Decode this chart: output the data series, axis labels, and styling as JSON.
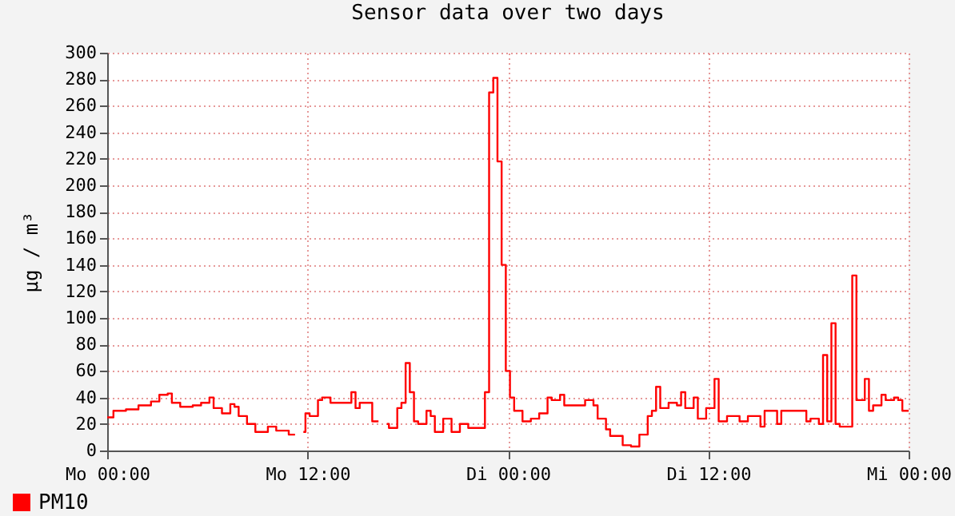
{
  "chart_data": {
    "type": "step",
    "title": "Sensor data over two days",
    "ylabel": "µg / m³",
    "categories": [
      "Mo 00:00",
      null,
      null,
      null,
      null,
      null,
      null,
      null,
      null,
      null,
      null,
      null,
      null,
      null,
      null,
      null,
      null,
      null,
      null,
      null,
      null,
      null,
      null,
      null,
      null,
      null,
      null,
      null,
      null,
      null,
      null,
      null,
      null,
      null,
      null,
      null,
      null,
      null,
      null,
      null,
      null,
      null,
      null,
      null,
      null,
      null,
      null,
      null,
      "Mo 12:00",
      null,
      null,
      null,
      null,
      null,
      null,
      null,
      null,
      null,
      null,
      null,
      null,
      null,
      null,
      null,
      null,
      null,
      null,
      null,
      null,
      null,
      null,
      null,
      null,
      null,
      null,
      null,
      null,
      null,
      null,
      null,
      null,
      null,
      null,
      null,
      null,
      null,
      null,
      null,
      null,
      null,
      null,
      null,
      null,
      null,
      null,
      null,
      "Di 00:00",
      null,
      null,
      null,
      null,
      null,
      null,
      null,
      null,
      null,
      null,
      null,
      null,
      null,
      null,
      null,
      null,
      null,
      null,
      null,
      null,
      null,
      null,
      null,
      null,
      null,
      null,
      null,
      null,
      null,
      null,
      null,
      null,
      null,
      null,
      null,
      null,
      null,
      null,
      null,
      null,
      null,
      null,
      null,
      null,
      null,
      null,
      null,
      "Di 12:00",
      null,
      null,
      null,
      null,
      null,
      null,
      null,
      null,
      null,
      null,
      null,
      null,
      null,
      null,
      null,
      null,
      null,
      null,
      null,
      null,
      null,
      null,
      null,
      null,
      null,
      null,
      null,
      null,
      null,
      null,
      null,
      null,
      null,
      null,
      null,
      null,
      null,
      null,
      null,
      null,
      null,
      null,
      null,
      null,
      null,
      null,
      null,
      "Mi 00:00"
    ],
    "ylim": [
      0,
      300
    ],
    "yticks": [
      0,
      20,
      40,
      60,
      80,
      100,
      120,
      140,
      160,
      180,
      200,
      220,
      240,
      260,
      280,
      300
    ],
    "grid": true,
    "legend": "bottom left",
    "series": [
      {
        "name": "PM10",
        "color": "#ff0000",
        "values": [
          25,
          25,
          30,
          30,
          30,
          31,
          31,
          31,
          34,
          34,
          34,
          37,
          37,
          42,
          42,
          43,
          36,
          36,
          33,
          33,
          33,
          34,
          34,
          36,
          36,
          40,
          32,
          32,
          28,
          28,
          35,
          33,
          26,
          26,
          20,
          20,
          14,
          14,
          14,
          18,
          18,
          15,
          15,
          15,
          12,
          12,
          null,
          14,
          28,
          26,
          26,
          38,
          40,
          40,
          36,
          36,
          36,
          36,
          36,
          44,
          32,
          36,
          36,
          36,
          22,
          22,
          null,
          20,
          17,
          17,
          32,
          36,
          66,
          44,
          22,
          20,
          20,
          30,
          26,
          14,
          14,
          24,
          24,
          14,
          14,
          20,
          20,
          17,
          17,
          17,
          17,
          44,
          270,
          281,
          218,
          140,
          60,
          40,
          30,
          30,
          22,
          22,
          24,
          24,
          28,
          28,
          40,
          38,
          38,
          42,
          34,
          34,
          34,
          34,
          34,
          38,
          38,
          34,
          24,
          24,
          16,
          11,
          11,
          11,
          4,
          4,
          3,
          3,
          12,
          12,
          26,
          30,
          48,
          32,
          32,
          36,
          36,
          34,
          44,
          32,
          32,
          40,
          24,
          24,
          32,
          32,
          54,
          22,
          22,
          26,
          26,
          26,
          22,
          22,
          26,
          26,
          26,
          18,
          30,
          30,
          30,
          20,
          30,
          30,
          30,
          30,
          30,
          30,
          22,
          24,
          24,
          20,
          72,
          22,
          96,
          20,
          18,
          18,
          18,
          132,
          38,
          38,
          54,
          30,
          34,
          34,
          42,
          38,
          38,
          40,
          38,
          30,
          30
        ]
      }
    ]
  }
}
